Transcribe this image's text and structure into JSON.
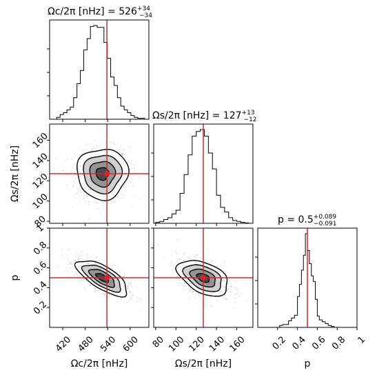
{
  "colors": {
    "truth_line": "#d62728",
    "hist_line": "#000000",
    "contour_line": "#000000",
    "scatter_points": "#000000",
    "background": "#ffffff"
  },
  "chart_data": {
    "type": "corner",
    "parameters": [
      {
        "id": "omega_c",
        "label": "Ωc/2π [nHz]",
        "title": "Ωc/2π [nHz] = 526",
        "title_sup": "+34",
        "title_sub": "−34",
        "range": [
          385,
          650
        ],
        "ticks": [
          420,
          480,
          540,
          600
        ],
        "truth": 538,
        "median": 526,
        "sigma_plus": 34,
        "sigma_minus": 34
      },
      {
        "id": "omega_s",
        "label": "Ωs/2π [nHz]",
        "title": "Ωs/2π [nHz] = 127",
        "title_sup": "+13",
        "title_sub": "−12",
        "range": [
          78,
          176
        ],
        "ticks": [
          80,
          100,
          120,
          140,
          160
        ],
        "truth": 127,
        "median": 127,
        "sigma_plus": 13,
        "sigma_minus": 12
      },
      {
        "id": "p",
        "label": "p",
        "title": "p = 0.5",
        "title_sup": "+0.089",
        "title_sub": "−0.091",
        "range": [
          0.0,
          1.0
        ],
        "ticks": [
          0.2,
          0.4,
          0.6,
          0.8,
          1.0
        ],
        "truth": 0.5,
        "median": 0.5,
        "sigma_plus": 0.089,
        "sigma_minus": 0.091
      }
    ],
    "histograms": {
      "omega_c": {
        "bin_edges": [
          404,
          413,
          422,
          431,
          440,
          449,
          458,
          467,
          476,
          485,
          494,
          503,
          512,
          521,
          530,
          539,
          548,
          557,
          566,
          575,
          584,
          593,
          602,
          611,
          620,
          629,
          638
        ],
        "density": [
          0.02,
          0.05,
          0.07,
          0.1,
          0.13,
          0.23,
          0.38,
          0.52,
          0.74,
          0.86,
          0.99,
          1.0,
          0.98,
          0.98,
          0.82,
          0.65,
          0.45,
          0.36,
          0.23,
          0.14,
          0.1,
          0.07,
          0.04,
          0.02,
          0.01,
          0.01
        ]
      },
      "omega_s": {
        "bin_edges": [
          80,
          84,
          88,
          92,
          96,
          100,
          104,
          108,
          112,
          116,
          120,
          124,
          128,
          132,
          136,
          140,
          144,
          148,
          152,
          156,
          160,
          164,
          168,
          172
        ],
        "density": [
          0.01,
          0.02,
          0.04,
          0.06,
          0.1,
          0.14,
          0.32,
          0.52,
          0.73,
          0.93,
          0.98,
          1.0,
          0.93,
          0.75,
          0.58,
          0.3,
          0.17,
          0.12,
          0.06,
          0.03,
          0.02,
          0.01,
          0.005
        ]
      },
      "p": {
        "bin_edges": [
          0.22,
          0.25,
          0.28,
          0.31,
          0.34,
          0.37,
          0.4,
          0.42,
          0.44,
          0.46,
          0.48,
          0.5,
          0.52,
          0.54,
          0.56,
          0.58,
          0.6,
          0.62,
          0.65,
          0.68,
          0.71,
          0.74,
          0.77
        ],
        "density": [
          0.02,
          0.03,
          0.03,
          0.07,
          0.1,
          0.13,
          0.33,
          0.46,
          0.61,
          0.77,
          1.0,
          0.82,
          0.68,
          0.55,
          0.49,
          0.3,
          0.12,
          0.08,
          0.06,
          0.04,
          0.02,
          0.01
        ]
      }
    },
    "pairs": [
      {
        "x": "omega_c",
        "y": "omega_s",
        "center": [
          526,
          127
        ],
        "sigma": [
          34,
          12.5
        ],
        "correlation": 0.0
      },
      {
        "x": "omega_c",
        "y": "p",
        "center": [
          526,
          0.5
        ],
        "sigma": [
          34,
          0.09
        ],
        "correlation": -0.7
      },
      {
        "x": "omega_s",
        "y": "p",
        "center": [
          127,
          0.5
        ],
        "sigma": [
          12.5,
          0.09
        ],
        "correlation": -0.45
      }
    ],
    "contour_levels_sigma": [
      0.5,
      1.0,
      1.5,
      2.0
    ]
  }
}
